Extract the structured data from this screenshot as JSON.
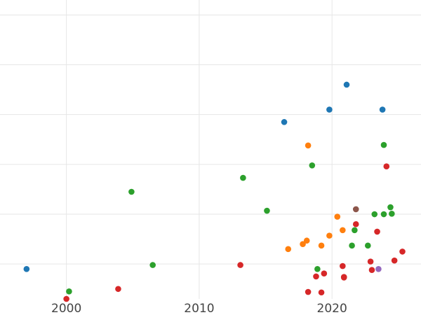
{
  "chart_data": {
    "type": "scatter",
    "title": "",
    "xlabel": "",
    "ylabel": "",
    "grid": true,
    "legend": "none",
    "x_ticks": [
      "2000",
      "2010",
      "2020"
    ],
    "x_tick_values": [
      2000,
      2010,
      2020
    ],
    "y_tick_values": [
      0,
      1,
      2,
      3,
      4,
      5
    ],
    "y_tick_labels_visible": false,
    "xlim": [
      1995,
      2026.7
    ],
    "ylim": [
      -0.7,
      5.3
    ],
    "series": [
      {
        "color": "#1f77b4",
        "points": [
          {
            "x": 1997.0,
            "y": -0.1
          },
          {
            "x": 2016.4,
            "y": 2.85
          },
          {
            "x": 2019.8,
            "y": 3.1
          },
          {
            "x": 2021.1,
            "y": 3.6
          },
          {
            "x": 2023.8,
            "y": 3.1
          }
        ]
      },
      {
        "color": "#ff7f0e",
        "points": [
          {
            "x": 2016.7,
            "y": 0.3
          },
          {
            "x": 2017.8,
            "y": 0.4
          },
          {
            "x": 2018.1,
            "y": 0.47
          },
          {
            "x": 2019.2,
            "y": 0.37
          },
          {
            "x": 2019.8,
            "y": 0.57
          },
          {
            "x": 2020.4,
            "y": 0.95
          },
          {
            "x": 2020.8,
            "y": 0.68
          },
          {
            "x": 2018.2,
            "y": 2.38
          }
        ]
      },
      {
        "color": "#2ca02c",
        "points": [
          {
            "x": 2000.2,
            "y": -0.55
          },
          {
            "x": 2004.9,
            "y": 1.45
          },
          {
            "x": 2006.5,
            "y": -0.02
          },
          {
            "x": 2013.3,
            "y": 1.73
          },
          {
            "x": 2015.1,
            "y": 1.07
          },
          {
            "x": 2018.5,
            "y": 1.98
          },
          {
            "x": 2018.9,
            "y": -0.1
          },
          {
            "x": 2021.5,
            "y": 0.37
          },
          {
            "x": 2021.7,
            "y": 0.68
          },
          {
            "x": 2022.7,
            "y": 0.37
          },
          {
            "x": 2023.2,
            "y": 1.0
          },
          {
            "x": 2023.9,
            "y": 2.39
          },
          {
            "x": 2023.9,
            "y": 1.0
          },
          {
            "x": 2024.4,
            "y": 1.14
          },
          {
            "x": 2024.5,
            "y": 1.01
          }
        ]
      },
      {
        "color": "#d62728",
        "points": [
          {
            "x": 2000.0,
            "y": -0.7
          },
          {
            "x": 2003.9,
            "y": -0.5
          },
          {
            "x": 2013.1,
            "y": -0.02
          },
          {
            "x": 2018.2,
            "y": -0.56
          },
          {
            "x": 2018.8,
            "y": -0.25
          },
          {
            "x": 2019.2,
            "y": -0.57
          },
          {
            "x": 2019.4,
            "y": -0.19
          },
          {
            "x": 2020.8,
            "y": -0.04
          },
          {
            "x": 2020.9,
            "y": -0.26
          },
          {
            "x": 2020.9,
            "y": -0.27
          },
          {
            "x": 2021.8,
            "y": 0.8
          },
          {
            "x": 2022.9,
            "y": 0.05
          },
          {
            "x": 2023.0,
            "y": -0.12
          },
          {
            "x": 2023.4,
            "y": 0.65
          },
          {
            "x": 2024.1,
            "y": 1.96
          },
          {
            "x": 2024.7,
            "y": 0.07
          },
          {
            "x": 2025.3,
            "y": 0.25
          }
        ]
      },
      {
        "color": "#9467bd",
        "points": [
          {
            "x": 2023.5,
            "y": -0.1
          }
        ]
      },
      {
        "color": "#8c564b",
        "points": [
          {
            "x": 2021.8,
            "y": 1.1
          }
        ]
      }
    ]
  }
}
